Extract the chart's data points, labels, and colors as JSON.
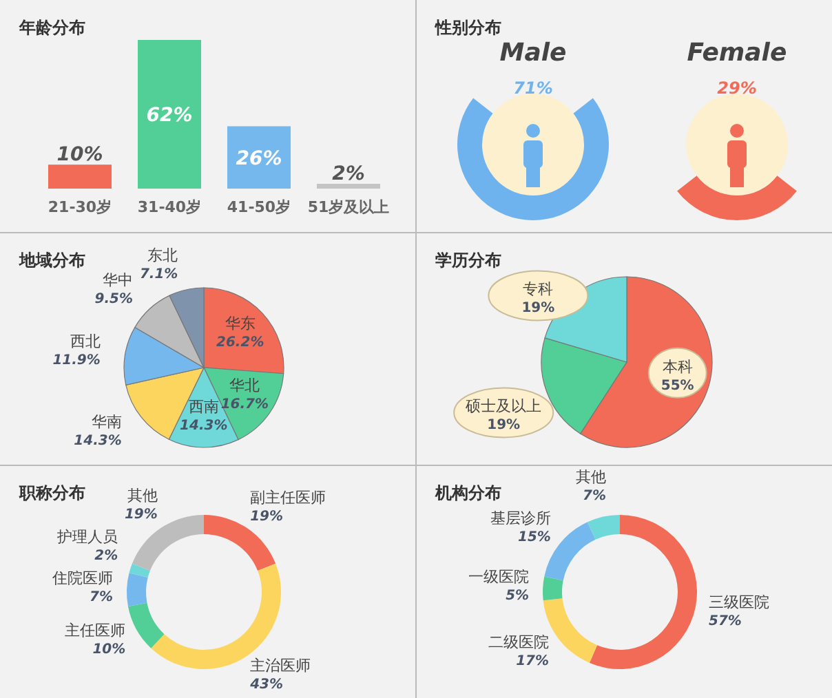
{
  "chart_data": [
    {
      "type": "bar",
      "title": "年龄分布",
      "categories": [
        "21-30岁",
        "31-40岁",
        "41-50岁",
        "51岁及以上"
      ],
      "values": [
        10,
        62,
        26,
        2
      ],
      "colors": [
        "#f26b57",
        "#52cf96",
        "#74b8ee",
        "#c4c4c4"
      ],
      "value_labels": [
        "10%",
        "62%",
        "26%",
        "2%"
      ]
    },
    {
      "type": "other",
      "title": "性别分布",
      "categories": [
        "Male",
        "Female"
      ],
      "values": [
        71,
        29
      ],
      "colors": [
        "#6fb3ee",
        "#f26b57"
      ],
      "value_labels": [
        "71%",
        "29%"
      ]
    },
    {
      "type": "pie",
      "title": "地域分布",
      "categories": [
        "华东",
        "华北",
        "西南",
        "华南",
        "西北",
        "华中",
        "东北"
      ],
      "values": [
        26.2,
        16.7,
        14.3,
        14.3,
        11.9,
        9.5,
        7.1
      ],
      "colors": [
        "#f26b57",
        "#52cf96",
        "#6fd8d8",
        "#fcd55e",
        "#74b8ee",
        "#bdbdbd",
        "#7f93ad"
      ],
      "value_labels": [
        "26.2%",
        "16.7%",
        "14.3%",
        "14.3%",
        "11.9%",
        "9.5%",
        "7.1%"
      ]
    },
    {
      "type": "pie",
      "title": "学历分布",
      "categories": [
        "本科",
        "硕士及以上",
        "专科"
      ],
      "values": [
        55,
        19,
        19
      ],
      "colors": [
        "#f26b57",
        "#52cf96",
        "#6fd8d8"
      ],
      "value_labels": [
        "55%",
        "19%",
        "19%"
      ]
    },
    {
      "type": "donut",
      "title": "职称分布",
      "categories": [
        "副主任医师",
        "主治医师",
        "主任医师",
        "住院医师",
        "护理人员",
        "其他"
      ],
      "values": [
        19,
        43,
        10,
        7,
        2,
        19
      ],
      "colors": [
        "#f26b57",
        "#fcd55e",
        "#52cf96",
        "#74b8ee",
        "#6fd8d8",
        "#bdbdbd"
      ],
      "value_labels": [
        "19%",
        "43%",
        "10%",
        "7%",
        "2%",
        "19%"
      ]
    },
    {
      "type": "donut",
      "title": "机构分布",
      "categories": [
        "三级医院",
        "二级医院",
        "一级医院",
        "基层诊所",
        "其他"
      ],
      "values": [
        57,
        17,
        5,
        15,
        7
      ],
      "colors": [
        "#f26b57",
        "#fcd55e",
        "#52cf96",
        "#74b8ee",
        "#6fd8d8"
      ],
      "value_labels": [
        "57%",
        "17%",
        "5%",
        "15%",
        "7%"
      ]
    }
  ]
}
